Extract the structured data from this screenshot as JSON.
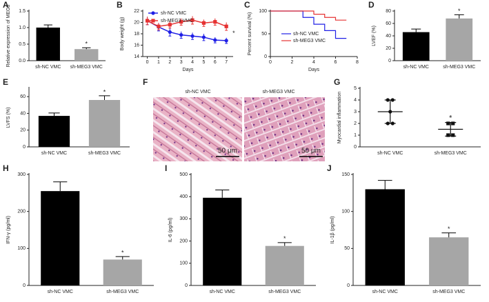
{
  "chart_data": [
    {
      "letter": "A",
      "type": "bar",
      "ylabel": "Relative expression of MEG3",
      "categories": [
        "sh-NC VMC",
        "sh-MEG3 VMC"
      ],
      "values": [
        1.0,
        0.35
      ],
      "errors": [
        0.08,
        0.04
      ],
      "colors": [
        "#000000",
        "#a6a6a6"
      ],
      "ylim": [
        0,
        1.5
      ],
      "yticks": [
        {
          "value": 0,
          "label": "0.0"
        },
        {
          "value": 0.5,
          "label": "0.5"
        },
        {
          "value": 1,
          "label": "1.0"
        },
        {
          "value": 1.5,
          "label": "1.5"
        }
      ],
      "annotation": "*"
    },
    {
      "letter": "B",
      "type": "line",
      "ylabel": "Body weight (g)",
      "xlabel": "Days",
      "x": [
        0,
        1,
        2,
        3,
        4,
        5,
        6,
        7
      ],
      "xlim": [
        -0.4,
        7.6
      ],
      "xticks": [
        0,
        1,
        2,
        3,
        4,
        5,
        6,
        7
      ],
      "ylim": [
        14,
        22
      ],
      "yticks": [
        14,
        16,
        18,
        20,
        22
      ],
      "series": [
        {
          "name": "sh-NC VMC",
          "color": "#1f1fe6",
          "marker": "circle",
          "values": [
            20.3,
            19.2,
            18.3,
            17.8,
            17.6,
            17.4,
            16.9,
            16.8
          ],
          "errors": [
            0.7,
            0.7,
            0.7,
            0.6,
            0.6,
            0.6,
            0.5,
            0.5
          ]
        },
        {
          "name": "sh-MEG3 VMC",
          "color": "#e63232",
          "marker": "square",
          "values": [
            20.3,
            19.3,
            19.6,
            20.1,
            20.4,
            19.9,
            20.1,
            19.3
          ],
          "errors": [
            0.7,
            0.6,
            0.6,
            0.6,
            0.7,
            0.6,
            0.6,
            0.7
          ]
        }
      ],
      "annotation": "*"
    },
    {
      "letter": "C",
      "type": "step",
      "ylabel": "Percent survival (%)",
      "xlabel": "Days",
      "x": [
        0,
        3,
        4,
        5,
        6,
        7
      ],
      "xlim": [
        0,
        8
      ],
      "xticks": [
        0,
        2,
        4,
        6,
        8
      ],
      "ylim": [
        0,
        100
      ],
      "yticks": [
        0,
        50,
        100
      ],
      "series": [
        {
          "name": "sh-NC VMC",
          "color": "#1f1fe6",
          "values": [
            100,
            86,
            71,
            57,
            40,
            40
          ]
        },
        {
          "name": "sh-MEG3 VMC",
          "color": "#e63232",
          "values": [
            100,
            100,
            93,
            86,
            80,
            80
          ]
        }
      ]
    },
    {
      "letter": "D",
      "type": "bar",
      "ylabel": "LVEF (%)",
      "categories": [
        "sh-NC VMC",
        "sh-MEG3 VMC"
      ],
      "values": [
        46,
        68
      ],
      "errors": [
        5,
        6
      ],
      "colors": [
        "#000000",
        "#a6a6a6"
      ],
      "ylim": [
        0,
        80
      ],
      "yticks": [
        0,
        20,
        40,
        60,
        80
      ],
      "annotation": "*"
    },
    {
      "letter": "E",
      "type": "bar",
      "ylabel": "LVFS (%)",
      "categories": [
        "sh-NC VMC",
        "sh-MEG3 VMC"
      ],
      "values": [
        37,
        56
      ],
      "errors": [
        3.5,
        5
      ],
      "colors": [
        "#000000",
        "#a6a6a6"
      ],
      "ylim": [
        0,
        70
      ],
      "yticks": [
        0,
        20,
        40,
        60
      ],
      "annotation": "*"
    },
    {
      "letter": "G",
      "type": "dotplot",
      "ylabel": "Myocardial inflammation",
      "categories": [
        "sh-NC VMC",
        "sh-MEG3 VMC"
      ],
      "points": [
        [
          4,
          4,
          3,
          2,
          2
        ],
        [
          2,
          2,
          1,
          1
        ]
      ],
      "means": [
        3,
        1.5
      ],
      "errors": [
        1,
        0.58
      ],
      "markers": [
        "circle",
        "square"
      ],
      "ylim": [
        0,
        5
      ],
      "yticks": [
        0,
        1,
        2,
        3,
        4,
        5
      ],
      "annotation": "*"
    },
    {
      "letter": "H",
      "type": "bar",
      "ylabel": "IFN-γ (pg/ml)",
      "categories": [
        "sh-NC VMC",
        "sh-MEG3 VMC"
      ],
      "values": [
        255,
        70
      ],
      "errors": [
        25,
        8
      ],
      "colors": [
        "#000000",
        "#a6a6a6"
      ],
      "ylim": [
        0,
        300
      ],
      "yticks": [
        0,
        100,
        200,
        300
      ],
      "annotation": "*"
    },
    {
      "letter": "I",
      "type": "bar",
      "ylabel": "IL-6 (pg/ml)",
      "categories": [
        "sh-NC VMC",
        "sh-MEG3 VMC"
      ],
      "values": [
        395,
        178
      ],
      "errors": [
        35,
        15
      ],
      "colors": [
        "#000000",
        "#a6a6a6"
      ],
      "ylim": [
        0,
        500
      ],
      "yticks": [
        0,
        100,
        200,
        300,
        400,
        500
      ],
      "annotation": "*"
    },
    {
      "letter": "J",
      "type": "bar",
      "ylabel": "IL-1β (pg/ml)",
      "categories": [
        "sh-NC VMC",
        "sh-MEG3 VMC"
      ],
      "values": [
        130,
        65
      ],
      "errors": [
        12,
        6
      ],
      "colors": [
        "#000000",
        "#a6a6a6"
      ],
      "ylim": [
        0,
        150
      ],
      "yticks": [
        0,
        50,
        100,
        150
      ],
      "annotation": "*"
    }
  ],
  "panel_f": {
    "letter": "F",
    "labels": [
      "sh-NC VMC",
      "sh-MEG3 VMC"
    ],
    "scale_bar": "50 μm"
  }
}
